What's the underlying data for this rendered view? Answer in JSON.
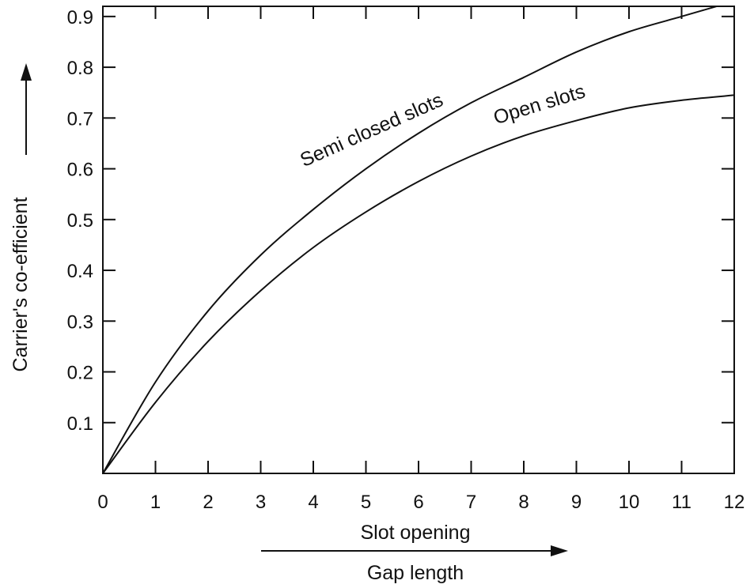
{
  "chart_data": {
    "type": "line",
    "title": "",
    "xlabel": "Slot opening",
    "xlabel_secondary": "Gap length",
    "ylabel": "Carrier's co-efficient",
    "xlim": [
      0,
      12
    ],
    "ylim": [
      0,
      0.92
    ],
    "x_ticks": [
      0,
      1,
      2,
      3,
      4,
      5,
      6,
      7,
      8,
      9,
      10,
      11,
      12
    ],
    "x_tick_labels": [
      "0",
      "1",
      "2",
      "3",
      "4",
      "5",
      "6",
      "7",
      "8",
      "9",
      "10",
      "11",
      "12"
    ],
    "y_ticks": [
      0.1,
      0.2,
      0.3,
      0.4,
      0.5,
      0.6,
      0.7,
      0.8,
      0.9
    ],
    "y_tick_labels": [
      "0.1",
      "0.2",
      "0.3",
      "0.4",
      "0.5",
      "0.6",
      "0.7",
      "0.8",
      "0.9"
    ],
    "grid": false,
    "legend": "none",
    "series": [
      {
        "name": "Semi closed slots",
        "x": [
          0,
          1,
          2,
          3,
          4,
          5,
          6,
          7,
          8,
          9,
          10,
          11,
          12
        ],
        "y": [
          0,
          0.18,
          0.32,
          0.43,
          0.52,
          0.6,
          0.67,
          0.73,
          0.78,
          0.83,
          0.87,
          0.9,
          0.93
        ]
      },
      {
        "name": "Open slots",
        "x": [
          0,
          1,
          2,
          3,
          4,
          5,
          6,
          7,
          8,
          9,
          10,
          11,
          12
        ],
        "y": [
          0,
          0.14,
          0.26,
          0.36,
          0.445,
          0.515,
          0.575,
          0.625,
          0.665,
          0.695,
          0.72,
          0.735,
          0.745
        ]
      }
    ]
  }
}
